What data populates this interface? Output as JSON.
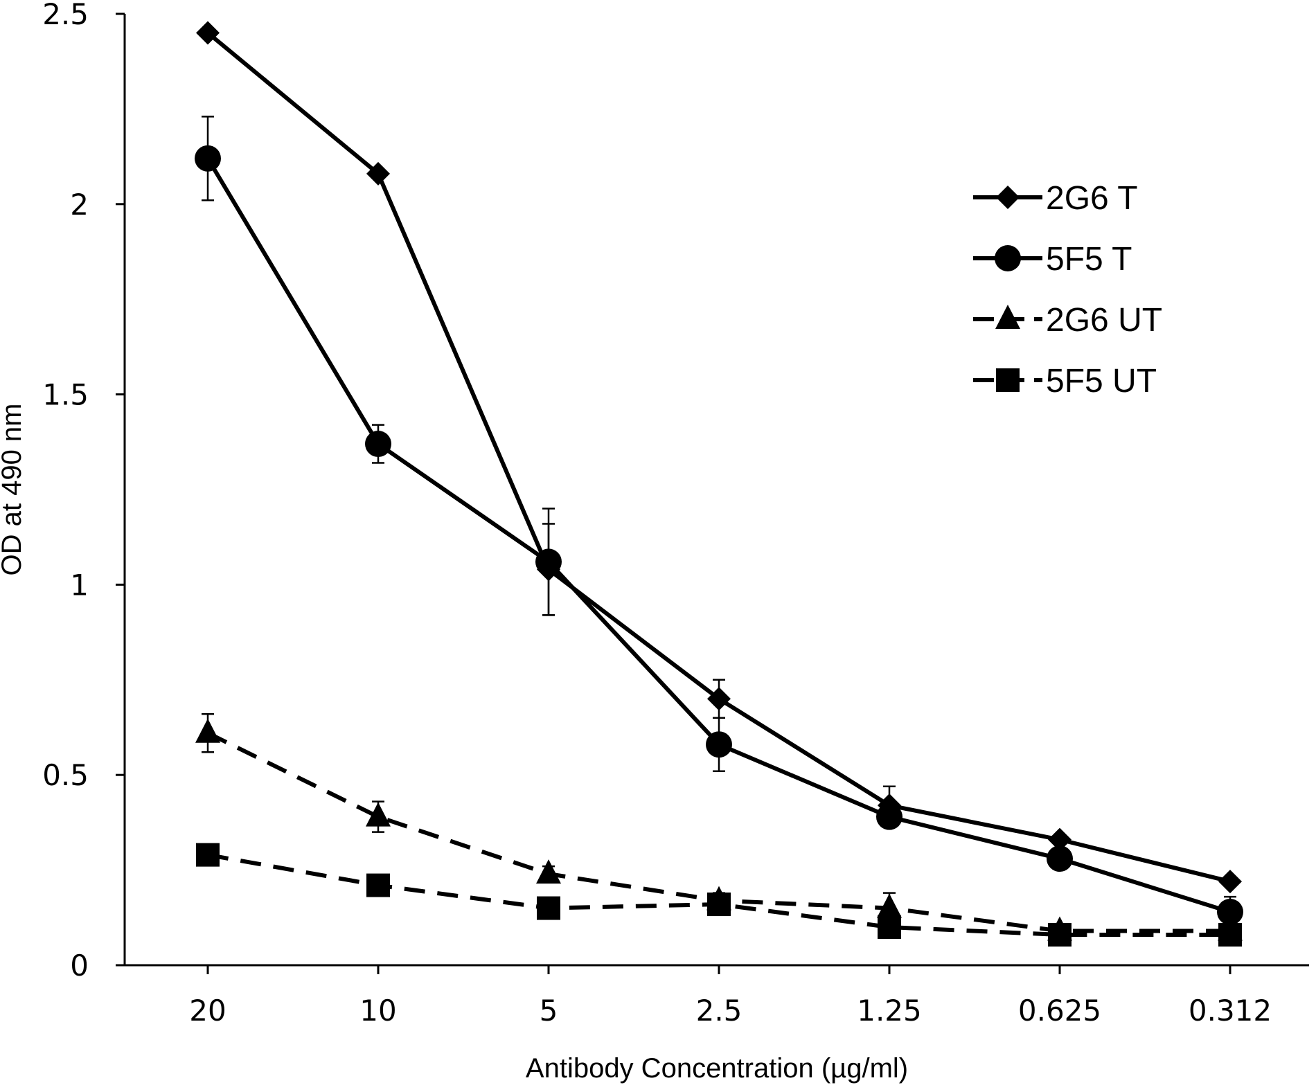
{
  "chart_data": {
    "type": "line",
    "title": "",
    "xlabel": "Antibody Concentration (µg/ml)",
    "ylabel": "OD at 490 nm",
    "categories": [
      "20",
      "10",
      "5",
      "2.5",
      "1.25",
      "0.625",
      "0.312"
    ],
    "ylim": [
      0,
      2.5
    ],
    "yticks": [
      "0",
      "0.5",
      "1",
      "1.5",
      "2",
      "2.5"
    ],
    "grid": false,
    "legend_position": "top-right",
    "series": [
      {
        "name": "2G6 T",
        "marker": "diamond",
        "line": "solid",
        "values": [
          2.45,
          2.08,
          1.04,
          0.7,
          0.42,
          0.33,
          0.22
        ],
        "errors": [
          0.01,
          0.01,
          0.12,
          0.05,
          0.05,
          0.01,
          0.01
        ]
      },
      {
        "name": "5F5 T",
        "marker": "circle",
        "line": "solid",
        "values": [
          2.12,
          1.37,
          1.06,
          0.58,
          0.39,
          0.28,
          0.14
        ],
        "errors": [
          0.11,
          0.05,
          0.14,
          0.07,
          0.02,
          0.02,
          0.04
        ]
      },
      {
        "name": "2G6 UT",
        "marker": "triangle",
        "line": "dashed",
        "values": [
          0.61,
          0.39,
          0.24,
          0.17,
          0.15,
          0.09,
          0.09
        ],
        "errors": [
          0.05,
          0.04,
          0.02,
          0.02,
          0.04,
          0.01,
          0.01
        ]
      },
      {
        "name": "5F5 UT",
        "marker": "square",
        "line": "dashed",
        "values": [
          0.29,
          0.21,
          0.15,
          0.16,
          0.1,
          0.08,
          0.08
        ],
        "errors": [
          0.01,
          0.01,
          0.01,
          0.01,
          0.01,
          0.01,
          0.01
        ]
      }
    ]
  }
}
